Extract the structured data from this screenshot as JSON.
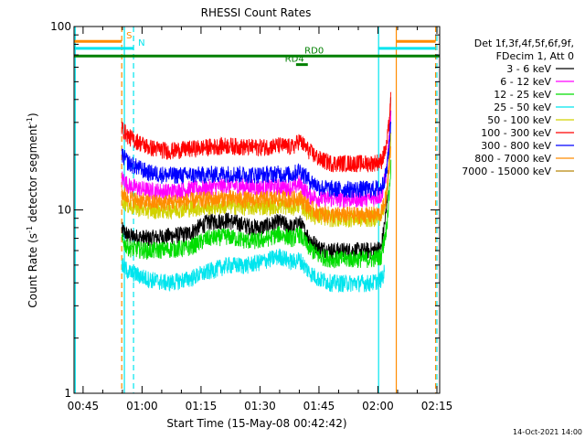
{
  "chart_data": {
    "type": "line",
    "title": "RHESSI Count Rates",
    "xlabel": "Start Time (15-May-08 00:42:42)",
    "ylabel": "Count Rate (s",
    "ylabel_sup1": "-1",
    "ylabel_mid": " detector segment",
    "ylabel_sup2": "-1",
    "ylabel_end": ")",
    "y_scale": "log",
    "ylim": [
      1,
      100
    ],
    "xlim": [
      2562,
      8142
    ],
    "x_ticks": [
      {
        "t": 2700,
        "label": "00:45"
      },
      {
        "t": 3600,
        "label": "01:00"
      },
      {
        "t": 4500,
        "label": "01:15"
      },
      {
        "t": 5400,
        "label": "01:30"
      },
      {
        "t": 6300,
        "label": "01:45"
      },
      {
        "t": 7200,
        "label": "02:00"
      },
      {
        "t": 8100,
        "label": "02:15"
      }
    ],
    "y_ticks": [
      {
        "v": 1,
        "label": "1"
      },
      {
        "v": 10,
        "label": "10"
      },
      {
        "v": 100,
        "label": "100"
      }
    ],
    "legend_header": [
      "Det 1f,3f,4f,5f,6f,9f,",
      "FDecim 1, Att 0"
    ],
    "series": [
      {
        "name": "3 - 6 keV",
        "color": "#000000",
        "points": [
          [
            3290,
            7.8
          ],
          [
            3400,
            7.2
          ],
          [
            3700,
            7.0
          ],
          [
            4000,
            7.2
          ],
          [
            4300,
            7.4
          ],
          [
            4600,
            8.6
          ],
          [
            4900,
            8.8
          ],
          [
            5200,
            8.2
          ],
          [
            5400,
            8.0
          ],
          [
            5700,
            8.6
          ],
          [
            5900,
            8.0
          ],
          [
            6000,
            8.6
          ],
          [
            6150,
            7.0
          ],
          [
            6300,
            6.2
          ],
          [
            6500,
            6.0
          ],
          [
            6800,
            6.0
          ],
          [
            7100,
            6.0
          ],
          [
            7250,
            6.2
          ],
          [
            7330,
            10
          ],
          [
            7370,
            20
          ],
          [
            7400,
            44
          ]
        ]
      },
      {
        "name": "6 - 12 keV",
        "color": "#ff00ff",
        "points": [
          [
            3290,
            15
          ],
          [
            3400,
            13.5
          ],
          [
            3700,
            12.8
          ],
          [
            4000,
            12.6
          ],
          [
            4300,
            13
          ],
          [
            4600,
            13.2
          ],
          [
            4900,
            13.6
          ],
          [
            5200,
            13.4
          ],
          [
            5400,
            13.2
          ],
          [
            5700,
            13.4
          ],
          [
            5900,
            13.2
          ],
          [
            6000,
            14
          ],
          [
            6150,
            12
          ],
          [
            6300,
            11.6
          ],
          [
            6500,
            11.5
          ],
          [
            6800,
            11.5
          ],
          [
            7100,
            11.6
          ],
          [
            7250,
            12
          ],
          [
            7330,
            16
          ],
          [
            7370,
            24
          ],
          [
            7400,
            34
          ]
        ]
      },
      {
        "name": "12 - 25 keV",
        "color": "#00dd00",
        "points": [
          [
            3290,
            6.8
          ],
          [
            3400,
            6.2
          ],
          [
            3700,
            6.0
          ],
          [
            4000,
            6.1
          ],
          [
            4300,
            6.2
          ],
          [
            4600,
            7.0
          ],
          [
            4900,
            7.2
          ],
          [
            5200,
            6.8
          ],
          [
            5400,
            6.8
          ],
          [
            5700,
            7.4
          ],
          [
            5900,
            7.0
          ],
          [
            6000,
            7.4
          ],
          [
            6150,
            6.2
          ],
          [
            6300,
            5.6
          ],
          [
            6500,
            5.4
          ],
          [
            6800,
            5.4
          ],
          [
            7100,
            5.4
          ],
          [
            7250,
            5.6
          ],
          [
            7330,
            8
          ],
          [
            7370,
            12
          ],
          [
            7400,
            18
          ]
        ]
      },
      {
        "name": "25 - 50 keV",
        "color": "#00e5ee",
        "points": [
          [
            3290,
            5.0
          ],
          [
            3400,
            4.6
          ],
          [
            3700,
            4.2
          ],
          [
            4000,
            4.0
          ],
          [
            4300,
            4.2
          ],
          [
            4600,
            4.6
          ],
          [
            4900,
            5.0
          ],
          [
            5200,
            5.0
          ],
          [
            5400,
            5.2
          ],
          [
            5700,
            5.6
          ],
          [
            5900,
            5.2
          ],
          [
            6000,
            5.4
          ],
          [
            6150,
            4.6
          ],
          [
            6300,
            4.2
          ],
          [
            6500,
            4.0
          ],
          [
            6800,
            4.0
          ],
          [
            7100,
            4.0
          ],
          [
            7250,
            4.2
          ],
          [
            7300,
            4.6
          ]
        ]
      },
      {
        "name": "50 - 100 keV",
        "color": "#d2d200",
        "points": [
          [
            3290,
            11.5
          ],
          [
            3400,
            10.5
          ],
          [
            3700,
            10
          ],
          [
            4000,
            10
          ],
          [
            4300,
            10.2
          ],
          [
            4600,
            10.4
          ],
          [
            4900,
            10.6
          ],
          [
            5200,
            10.4
          ],
          [
            5400,
            10.4
          ],
          [
            5700,
            10.6
          ],
          [
            5900,
            10.4
          ],
          [
            6000,
            10.8
          ],
          [
            6150,
            9.6
          ],
          [
            6300,
            9.2
          ],
          [
            6500,
            9.0
          ],
          [
            6800,
            9.0
          ],
          [
            7100,
            9.0
          ],
          [
            7250,
            9.2
          ],
          [
            7330,
            12
          ],
          [
            7370,
            18
          ],
          [
            7400,
            26
          ]
        ]
      },
      {
        "name": "100 - 300 keV",
        "color": "#ff0000",
        "points": [
          [
            3290,
            28
          ],
          [
            3400,
            25
          ],
          [
            3700,
            22
          ],
          [
            4000,
            21
          ],
          [
            4300,
            21.5
          ],
          [
            4600,
            22
          ],
          [
            4900,
            22.5
          ],
          [
            5200,
            22
          ],
          [
            5400,
            22
          ],
          [
            5700,
            22.5
          ],
          [
            5900,
            22
          ],
          [
            6000,
            24
          ],
          [
            6150,
            21
          ],
          [
            6300,
            19
          ],
          [
            6500,
            18
          ],
          [
            6800,
            18
          ],
          [
            7100,
            18
          ],
          [
            7250,
            18.5
          ],
          [
            7330,
            22
          ],
          [
            7370,
            30
          ],
          [
            7400,
            42
          ]
        ]
      },
      {
        "name": "300 - 800 keV",
        "color": "#0000ff",
        "points": [
          [
            3290,
            20
          ],
          [
            3400,
            18
          ],
          [
            3700,
            16
          ],
          [
            4000,
            15.5
          ],
          [
            4300,
            15.5
          ],
          [
            4600,
            15.6
          ],
          [
            4900,
            15.8
          ],
          [
            5200,
            15.6
          ],
          [
            5400,
            15.6
          ],
          [
            5700,
            15.8
          ],
          [
            5900,
            15.6
          ],
          [
            6000,
            16.6
          ],
          [
            6150,
            14.6
          ],
          [
            6300,
            13.4
          ],
          [
            6500,
            13
          ],
          [
            6800,
            13
          ],
          [
            7100,
            13
          ],
          [
            7250,
            13.2
          ],
          [
            7330,
            16
          ],
          [
            7370,
            22
          ],
          [
            7400,
            32
          ]
        ]
      },
      {
        "name": "800 - 7000 keV",
        "color": "#ff8c00",
        "points": [
          [
            3290,
            12.5
          ],
          [
            3400,
            11.6
          ],
          [
            3700,
            11
          ],
          [
            4000,
            11
          ],
          [
            4300,
            11.2
          ],
          [
            4600,
            11.4
          ],
          [
            4900,
            11.6
          ],
          [
            5200,
            11.4
          ],
          [
            5400,
            11.4
          ],
          [
            5700,
            11.6
          ],
          [
            5900,
            11.4
          ],
          [
            6000,
            11.8
          ],
          [
            6150,
            10.4
          ],
          [
            6300,
            9.6
          ],
          [
            6500,
            9.4
          ],
          [
            6800,
            9.4
          ],
          [
            7100,
            9.4
          ],
          [
            7250,
            9.6
          ],
          [
            7330,
            12
          ],
          [
            7370,
            17
          ],
          [
            7400,
            24
          ]
        ]
      },
      {
        "name": "7000 - 15000 keV",
        "color": "#b8860b",
        "points": []
      }
    ],
    "markers": [
      {
        "label": "S",
        "color": "#ff8c00",
        "level": 83,
        "spans": [
          [
            2562,
            3290
          ],
          [
            7480,
            8080
          ]
        ]
      },
      {
        "label": "N",
        "color": "#00e5ee",
        "level": 76,
        "spans": [
          [
            2562,
            3470
          ],
          [
            7200,
            8080
          ]
        ]
      },
      {
        "label": "RD0",
        "color": "#008000",
        "level": 69,
        "spans": [
          [
            2562,
            8142
          ]
        ]
      },
      {
        "label": "RD4",
        "color": "#008000",
        "level": 62,
        "spans": [
          [
            5950,
            6130
          ]
        ]
      }
    ],
    "vertical_lines": [
      {
        "t": 2580,
        "color": "#00e5ee",
        "dashed": false
      },
      {
        "t": 3290,
        "color": "#ff8c00",
        "dashed": true
      },
      {
        "t": 3330,
        "color": "#00e5ee",
        "dashed": false
      },
      {
        "t": 3470,
        "color": "#00e5ee",
        "dashed": true
      },
      {
        "t": 7210,
        "color": "#00e5ee",
        "dashed": false
      },
      {
        "t": 7480,
        "color": "#ff8c00",
        "dashed": false
      },
      {
        "t": 8080,
        "color": "#ff8c00",
        "dashed": true
      },
      {
        "t": 8100,
        "color": "#00e5ee",
        "dashed": true
      }
    ],
    "timestamp": "14-Oct-2021 14:00"
  }
}
